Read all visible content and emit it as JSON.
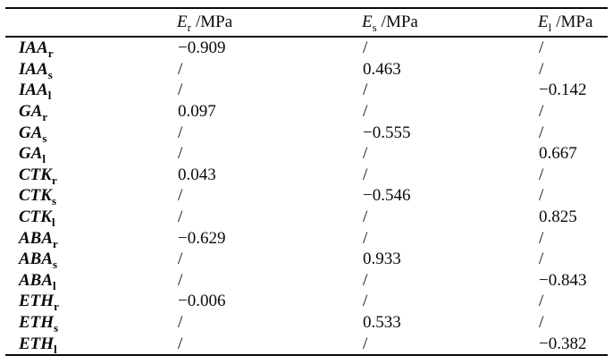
{
  "table": {
    "columns": [
      {
        "base": "E",
        "sub": "r",
        "unit": "/MPa"
      },
      {
        "base": "E",
        "sub": "s",
        "unit": "/MPa"
      },
      {
        "base": "E",
        "sub": "l",
        "unit": "/MPa"
      }
    ],
    "rows": [
      {
        "label_base": "IAA",
        "label_sub": "r",
        "values": [
          "−0.909",
          "/",
          "/"
        ]
      },
      {
        "label_base": "IAA",
        "label_sub": "s",
        "values": [
          "/",
          "0.463",
          "/"
        ]
      },
      {
        "label_base": "IAA",
        "label_sub": "l",
        "values": [
          "/",
          "/",
          "−0.142"
        ]
      },
      {
        "label_base": "GA",
        "label_sub": "r",
        "values": [
          "0.097",
          "/",
          "/"
        ]
      },
      {
        "label_base": "GA",
        "label_sub": "s",
        "values": [
          "/",
          "−0.555",
          "/"
        ]
      },
      {
        "label_base": "GA",
        "label_sub": "l",
        "values": [
          "/",
          "/",
          "0.667"
        ]
      },
      {
        "label_base": "CTK",
        "label_sub": "r",
        "values": [
          "0.043",
          "/",
          "/"
        ]
      },
      {
        "label_base": "CTK",
        "label_sub": "s",
        "values": [
          "/",
          "−0.546",
          "/"
        ]
      },
      {
        "label_base": "CTK",
        "label_sub": "l",
        "values": [
          "/",
          "/",
          "0.825"
        ]
      },
      {
        "label_base": "ABA",
        "label_sub": "r",
        "values": [
          "−0.629",
          "/",
          "/"
        ]
      },
      {
        "label_base": "ABA",
        "label_sub": "s",
        "values": [
          "/",
          "0.933",
          "/"
        ]
      },
      {
        "label_base": "ABA",
        "label_sub": "l",
        "values": [
          "/",
          "/",
          "−0.843"
        ]
      },
      {
        "label_base": "ETH",
        "label_sub": "r",
        "values": [
          "−0.006",
          "/",
          "/"
        ]
      },
      {
        "label_base": "ETH",
        "label_sub": "s",
        "values": [
          "/",
          "0.533",
          "/"
        ]
      },
      {
        "label_base": "ETH",
        "label_sub": "l",
        "values": [
          "/",
          "/",
          "−0.382"
        ]
      }
    ],
    "colors": {
      "text": "#0a0a0a",
      "background": "#ffffff",
      "rule": "#0a0a0a"
    }
  }
}
